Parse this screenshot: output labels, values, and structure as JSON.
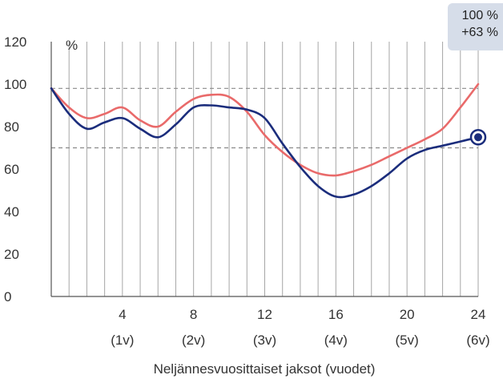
{
  "chart_data": {
    "type": "line",
    "xlabel": "Neljännesvuosittaiset jaksot (vuodet)",
    "ylabel": "%",
    "ylim": [
      0,
      120
    ],
    "xlim": [
      0,
      24
    ],
    "y_ticks": [
      0,
      20,
      40,
      60,
      80,
      100,
      120
    ],
    "x_ticks": [
      {
        "value": 4,
        "label": "4",
        "sub": "(1v)"
      },
      {
        "value": 8,
        "label": "8",
        "sub": "(2v)"
      },
      {
        "value": 12,
        "label": "12",
        "sub": "(3v)"
      },
      {
        "value": 16,
        "label": "16",
        "sub": "(4v)"
      },
      {
        "value": 20,
        "label": "20",
        "sub": "(5v)"
      },
      {
        "value": 24,
        "label": "24",
        "sub": "(6v)"
      }
    ],
    "reference_lines": [
      98,
      70
    ],
    "grid": "vertical lines at every quarter",
    "series": [
      {
        "color": "#e96a6a",
        "x": [
          0,
          1,
          2,
          3,
          4,
          5,
          6,
          7,
          8,
          9,
          10,
          11,
          12,
          13,
          14,
          15,
          16,
          17,
          18,
          19,
          20,
          21,
          22,
          23,
          24
        ],
        "values": [
          98,
          89,
          84,
          86,
          89,
          83,
          80,
          87,
          93,
          95,
          94,
          87,
          76,
          68,
          62,
          58,
          57,
          59,
          62,
          66,
          70,
          74,
          79,
          89,
          100
        ]
      },
      {
        "color": "#1b2d7c",
        "x": [
          0,
          1,
          2,
          3,
          4,
          5,
          6,
          7,
          8,
          9,
          10,
          11,
          12,
          13,
          14,
          15,
          16,
          17,
          18,
          19,
          20,
          21,
          22,
          23,
          24
        ],
        "values": [
          98,
          86,
          79,
          82,
          84,
          79,
          75,
          81,
          89,
          90,
          89,
          88,
          84,
          72,
          61,
          52,
          47,
          48,
          52,
          58,
          65,
          69,
          71,
          73,
          75
        ]
      }
    ]
  },
  "callout": {
    "line1": "100 %",
    "line2": "+63 %"
  }
}
